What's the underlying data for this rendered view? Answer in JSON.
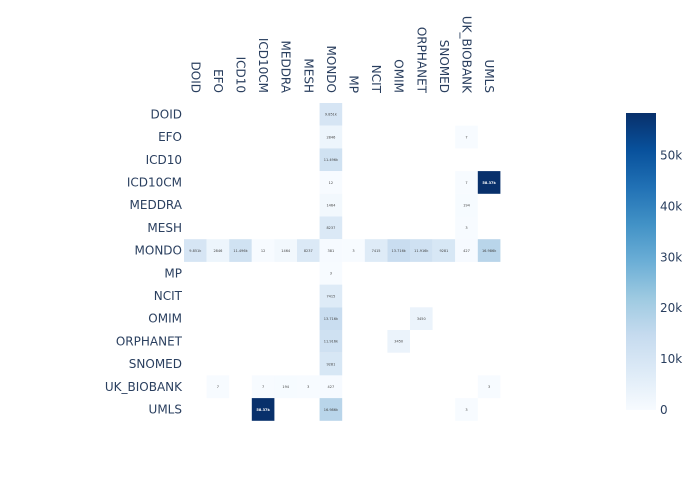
{
  "chart_data": {
    "type": "heatmap",
    "title": "",
    "xlabel": "",
    "ylabel": "",
    "x_categories": [
      "DOID",
      "EFO",
      "ICD10",
      "ICD10CM",
      "MEDDRA",
      "MESH",
      "MONDO",
      "MP",
      "NCIT",
      "OMIM",
      "ORPHANET",
      "SNOMED",
      "UK_BIOBANK",
      "UMLS"
    ],
    "y_categories": [
      "DOID",
      "EFO",
      "ICD10",
      "ICD10CM",
      "MEDDRA",
      "MESH",
      "MONDO",
      "MP",
      "NCIT",
      "OMIM",
      "ORPHANET",
      "SNOMED",
      "UK_BIOBANK",
      "UMLS"
    ],
    "cells": [
      {
        "row": 0,
        "col": 6,
        "value": 9851,
        "label": "9.851k"
      },
      {
        "row": 1,
        "col": 6,
        "value": 2846,
        "label": "2846"
      },
      {
        "row": 1,
        "col": 12,
        "value": 7,
        "label": "7"
      },
      {
        "row": 2,
        "col": 6,
        "value": 11496,
        "label": "11.496k"
      },
      {
        "row": 3,
        "col": 6,
        "value": 12,
        "label": "12"
      },
      {
        "row": 3,
        "col": 12,
        "value": 7,
        "label": "7"
      },
      {
        "row": 3,
        "col": 13,
        "value": 58370,
        "label": "58.37k"
      },
      {
        "row": 4,
        "col": 6,
        "value": 1464,
        "label": "1464"
      },
      {
        "row": 4,
        "col": 12,
        "value": 194,
        "label": "194"
      },
      {
        "row": 5,
        "col": 6,
        "value": 8237,
        "label": "8237"
      },
      {
        "row": 5,
        "col": 12,
        "value": 3,
        "label": "3"
      },
      {
        "row": 6,
        "col": 0,
        "value": 9851,
        "label": "9.851k"
      },
      {
        "row": 6,
        "col": 1,
        "value": 2846,
        "label": "2846"
      },
      {
        "row": 6,
        "col": 2,
        "value": 11496,
        "label": "11.496k"
      },
      {
        "row": 6,
        "col": 3,
        "value": 12,
        "label": "12"
      },
      {
        "row": 6,
        "col": 4,
        "value": 1464,
        "label": "1464"
      },
      {
        "row": 6,
        "col": 5,
        "value": 8237,
        "label": "8237"
      },
      {
        "row": 6,
        "col": 6,
        "value": 381,
        "label": "381"
      },
      {
        "row": 6,
        "col": 7,
        "value": 3,
        "label": "3"
      },
      {
        "row": 6,
        "col": 8,
        "value": 7415,
        "label": "7415"
      },
      {
        "row": 6,
        "col": 9,
        "value": 13716,
        "label": "13.716k"
      },
      {
        "row": 6,
        "col": 10,
        "value": 11916,
        "label": "11.916k"
      },
      {
        "row": 6,
        "col": 11,
        "value": 9281,
        "label": "9281"
      },
      {
        "row": 6,
        "col": 12,
        "value": 427,
        "label": "427"
      },
      {
        "row": 6,
        "col": 13,
        "value": 16986,
        "label": "16.986k"
      },
      {
        "row": 7,
        "col": 6,
        "value": 3,
        "label": "3"
      },
      {
        "row": 8,
        "col": 6,
        "value": 7415,
        "label": "7415"
      },
      {
        "row": 9,
        "col": 6,
        "value": 13716,
        "label": "13.716k"
      },
      {
        "row": 9,
        "col": 10,
        "value": 3450,
        "label": "3450"
      },
      {
        "row": 10,
        "col": 6,
        "value": 11916,
        "label": "11.916k"
      },
      {
        "row": 10,
        "col": 9,
        "value": 3450,
        "label": "3450"
      },
      {
        "row": 11,
        "col": 6,
        "value": 9281,
        "label": "9281"
      },
      {
        "row": 12,
        "col": 1,
        "value": 7,
        "label": "7"
      },
      {
        "row": 12,
        "col": 3,
        "value": 7,
        "label": "7"
      },
      {
        "row": 12,
        "col": 4,
        "value": 194,
        "label": "194"
      },
      {
        "row": 12,
        "col": 5,
        "value": 3,
        "label": "3"
      },
      {
        "row": 12,
        "col": 6,
        "value": 427,
        "label": "427"
      },
      {
        "row": 12,
        "col": 13,
        "value": 3,
        "label": "3"
      },
      {
        "row": 13,
        "col": 3,
        "value": 58370,
        "label": "58.37k"
      },
      {
        "row": 13,
        "col": 6,
        "value": 16986,
        "label": "16.986k"
      },
      {
        "row": 13,
        "col": 12,
        "value": 3,
        "label": "3"
      }
    ],
    "colorscale": {
      "name": "Blues",
      "min": 0,
      "max": 58370,
      "stops": [
        "#f7fbff",
        "#deebf7",
        "#c6dbef",
        "#9ecae1",
        "#6baed6",
        "#4292c6",
        "#2171b5",
        "#08519c",
        "#08306b"
      ]
    },
    "colorbar": {
      "ticks": [
        0,
        10000,
        20000,
        30000,
        40000,
        50000
      ],
      "tick_labels": [
        "0",
        "10k",
        "20k",
        "30k",
        "40k",
        "50k"
      ]
    },
    "grid": false,
    "legend": "right"
  }
}
